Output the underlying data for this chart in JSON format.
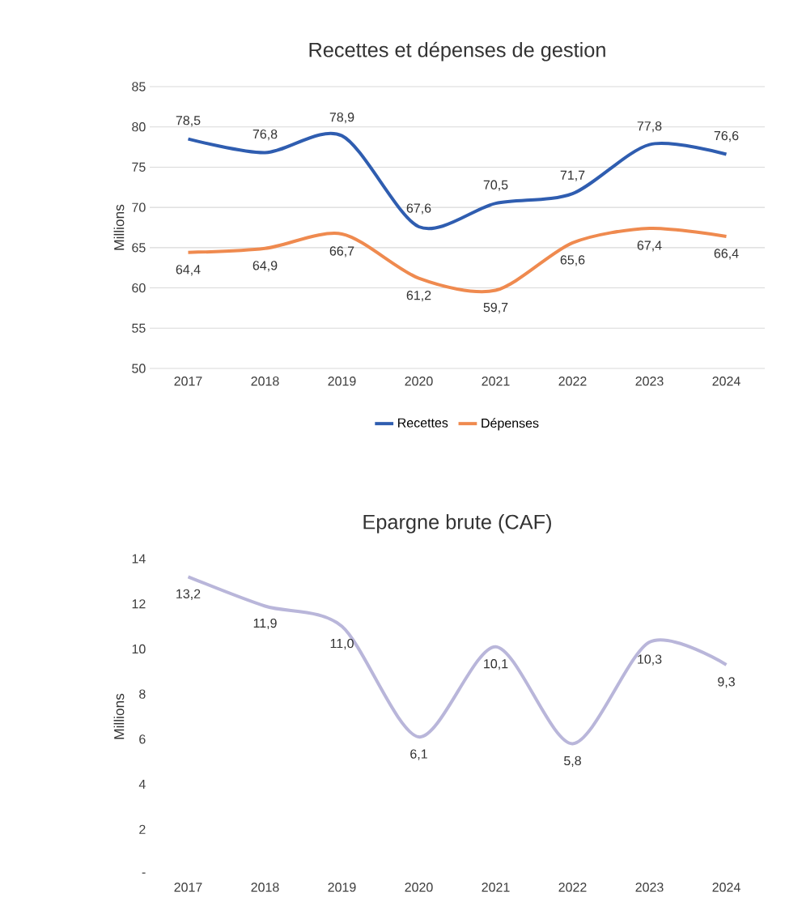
{
  "chart_data": [
    {
      "type": "line",
      "title": "Recettes et dépenses de gestion",
      "ylabel": "Millions",
      "categories": [
        "2017",
        "2018",
        "2019",
        "2020",
        "2021",
        "2022",
        "2023",
        "2024"
      ],
      "series": [
        {
          "name": "Recettes",
          "color": "#2f5db0",
          "values": [
            78.5,
            76.8,
            78.9,
            67.6,
            70.5,
            71.7,
            77.8,
            76.6
          ],
          "value_labels": [
            "78,5",
            "76,8",
            "78,9",
            "67,6",
            "70,5",
            "71,7",
            "77,8",
            "76,6"
          ]
        },
        {
          "name": "Dépenses",
          "color": "#ef8a4f",
          "values": [
            64.4,
            64.9,
            66.7,
            61.2,
            59.7,
            65.6,
            67.4,
            66.4
          ],
          "value_labels": [
            "64,4",
            "64,9",
            "66,7",
            "61,2",
            "59,7",
            "65,6",
            "67,4",
            "66,4"
          ]
        }
      ],
      "ylim": [
        50,
        85
      ],
      "yticks": [
        50,
        55,
        60,
        65,
        70,
        75,
        80,
        85
      ],
      "grid": "y",
      "legend": "bottom",
      "marker": "none",
      "line_style": "solid"
    },
    {
      "type": "line",
      "title": "Epargne brute (CAF)",
      "ylabel": "Millions",
      "categories": [
        "2017",
        "2018",
        "2019",
        "2020",
        "2021",
        "2022",
        "2023",
        "2024"
      ],
      "series": [
        {
          "color": "#b9b6da",
          "values": [
            13.2,
            11.9,
            11.0,
            6.1,
            10.1,
            5.8,
            10.3,
            9.3
          ],
          "value_labels": [
            "13,2",
            "11,9",
            "11,0",
            "6,1",
            "10,1",
            "5,8",
            "10,3",
            "9,3"
          ]
        }
      ],
      "ylim": [
        0,
        14
      ],
      "yticks": [
        {
          "value": 0,
          "label": "-"
        },
        2,
        4,
        6,
        8,
        10,
        12,
        14
      ],
      "marker": "none",
      "line_style": "solid"
    }
  ]
}
